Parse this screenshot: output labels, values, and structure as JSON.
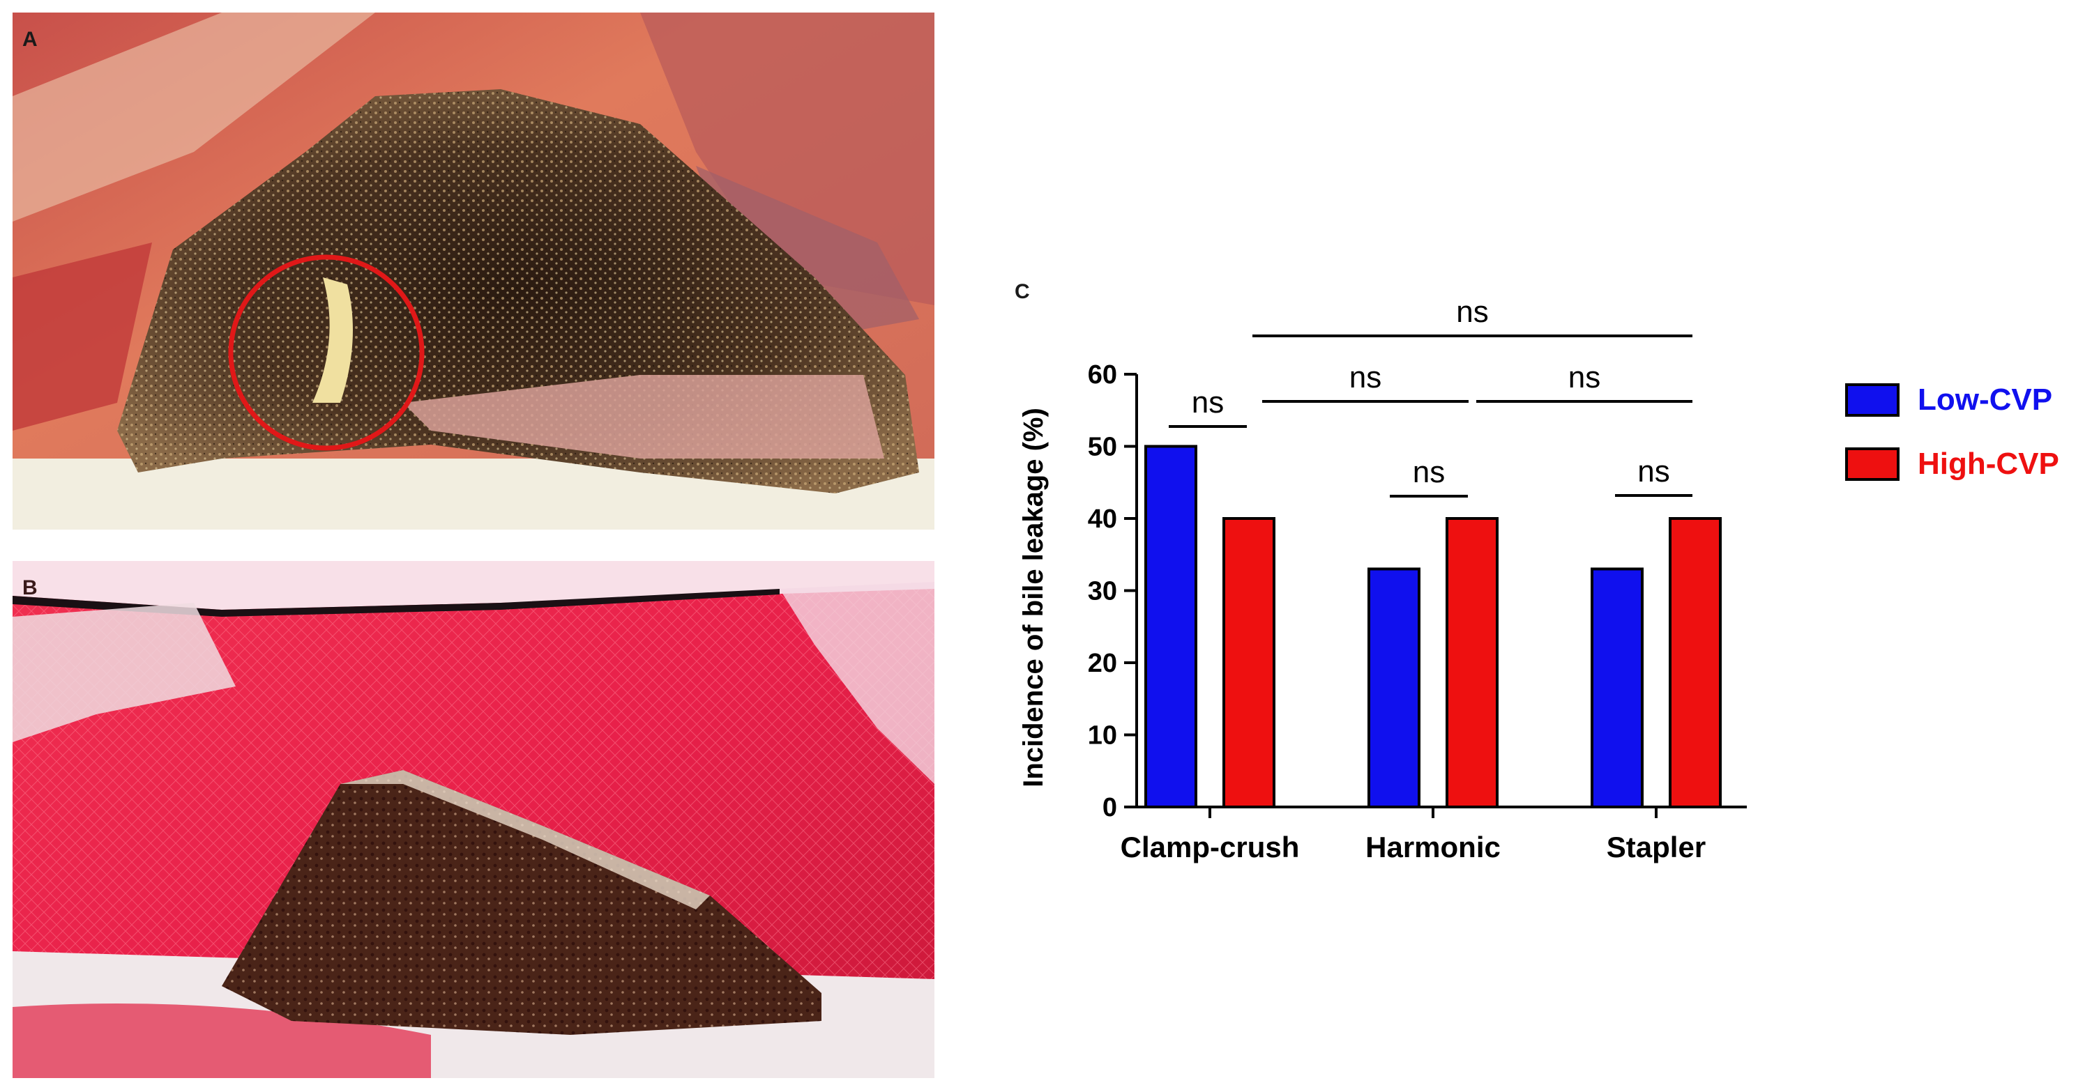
{
  "panels": {
    "a_label": "A",
    "b_label": "B",
    "c_label": "C"
  },
  "colors": {
    "low_cvp": "#1010ee",
    "high_cvp": "#ee1010"
  },
  "chart_data": {
    "type": "bar",
    "title": "",
    "xlabel": "",
    "ylabel": "Incidence of bile leakage (%)",
    "ylim": [
      0,
      60
    ],
    "yticks": [
      0,
      10,
      20,
      30,
      40,
      50,
      60
    ],
    "categories": [
      "Clamp-crush",
      "Harmonic",
      "Stapler"
    ],
    "series": [
      {
        "name": "Low-CVP",
        "color": "#1010ee",
        "values": [
          50,
          33,
          33
        ]
      },
      {
        "name": "High-CVP",
        "color": "#ee1010",
        "values": [
          40,
          40,
          40
        ]
      }
    ],
    "legend_position": "right",
    "significance": [
      {
        "label": "ns",
        "from": "Clamp-crush",
        "to": "Clamp-crush"
      },
      {
        "label": "ns",
        "from": "Harmonic",
        "to": "Harmonic"
      },
      {
        "label": "ns",
        "from": "Stapler",
        "to": "Stapler"
      },
      {
        "label": "ns",
        "from": "Clamp-crush",
        "to": "Harmonic"
      },
      {
        "label": "ns",
        "from": "Harmonic",
        "to": "Stapler"
      },
      {
        "label": "ns",
        "from": "Clamp-crush",
        "to": "Stapler"
      }
    ]
  }
}
